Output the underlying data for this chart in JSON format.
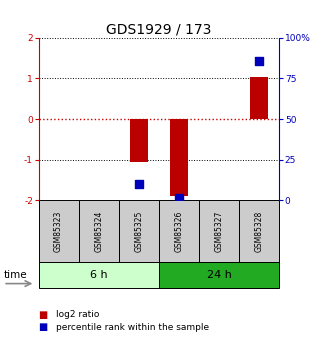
{
  "title": "GDS1929 / 173",
  "samples": [
    "GSM85323",
    "GSM85324",
    "GSM85325",
    "GSM85326",
    "GSM85327",
    "GSM85328"
  ],
  "log2_ratio": [
    0.0,
    0.0,
    -1.05,
    -1.9,
    0.0,
    1.03
  ],
  "percentile_rank": [
    null,
    null,
    10.0,
    1.5,
    null,
    86.0
  ],
  "ylim_left": [
    -2,
    2
  ],
  "ylim_right": [
    0,
    100
  ],
  "yticks_left": [
    -2,
    -1,
    0,
    1,
    2
  ],
  "yticks_right": [
    0,
    25,
    50,
    75,
    100
  ],
  "yticklabels_right": [
    "0",
    "25",
    "50",
    "75",
    "100%"
  ],
  "groups": [
    {
      "label": "6 h",
      "samples": [
        0,
        1,
        2
      ],
      "color_light": "#ccffcc",
      "color_dark": "#55dd55"
    },
    {
      "label": "24 h",
      "samples": [
        3,
        4,
        5
      ],
      "color_light": "#55dd55",
      "color_dark": "#22aa22"
    }
  ],
  "bar_color": "#bb0000",
  "dot_color": "#0000bb",
  "bar_width": 0.45,
  "dot_size": 35,
  "hline_color": "#cc0000",
  "grid_color": "#000000",
  "bg_plot": "#ffffff",
  "bg_sample_box": "#cccccc",
  "legend_log2_label": "log2 ratio",
  "legend_pct_label": "percentile rank within the sample",
  "time_label": "time",
  "title_fontsize": 10,
  "tick_fontsize": 6.5,
  "sample_fontsize": 5.5,
  "group_fontsize": 8,
  "legend_fontsize": 6.5
}
